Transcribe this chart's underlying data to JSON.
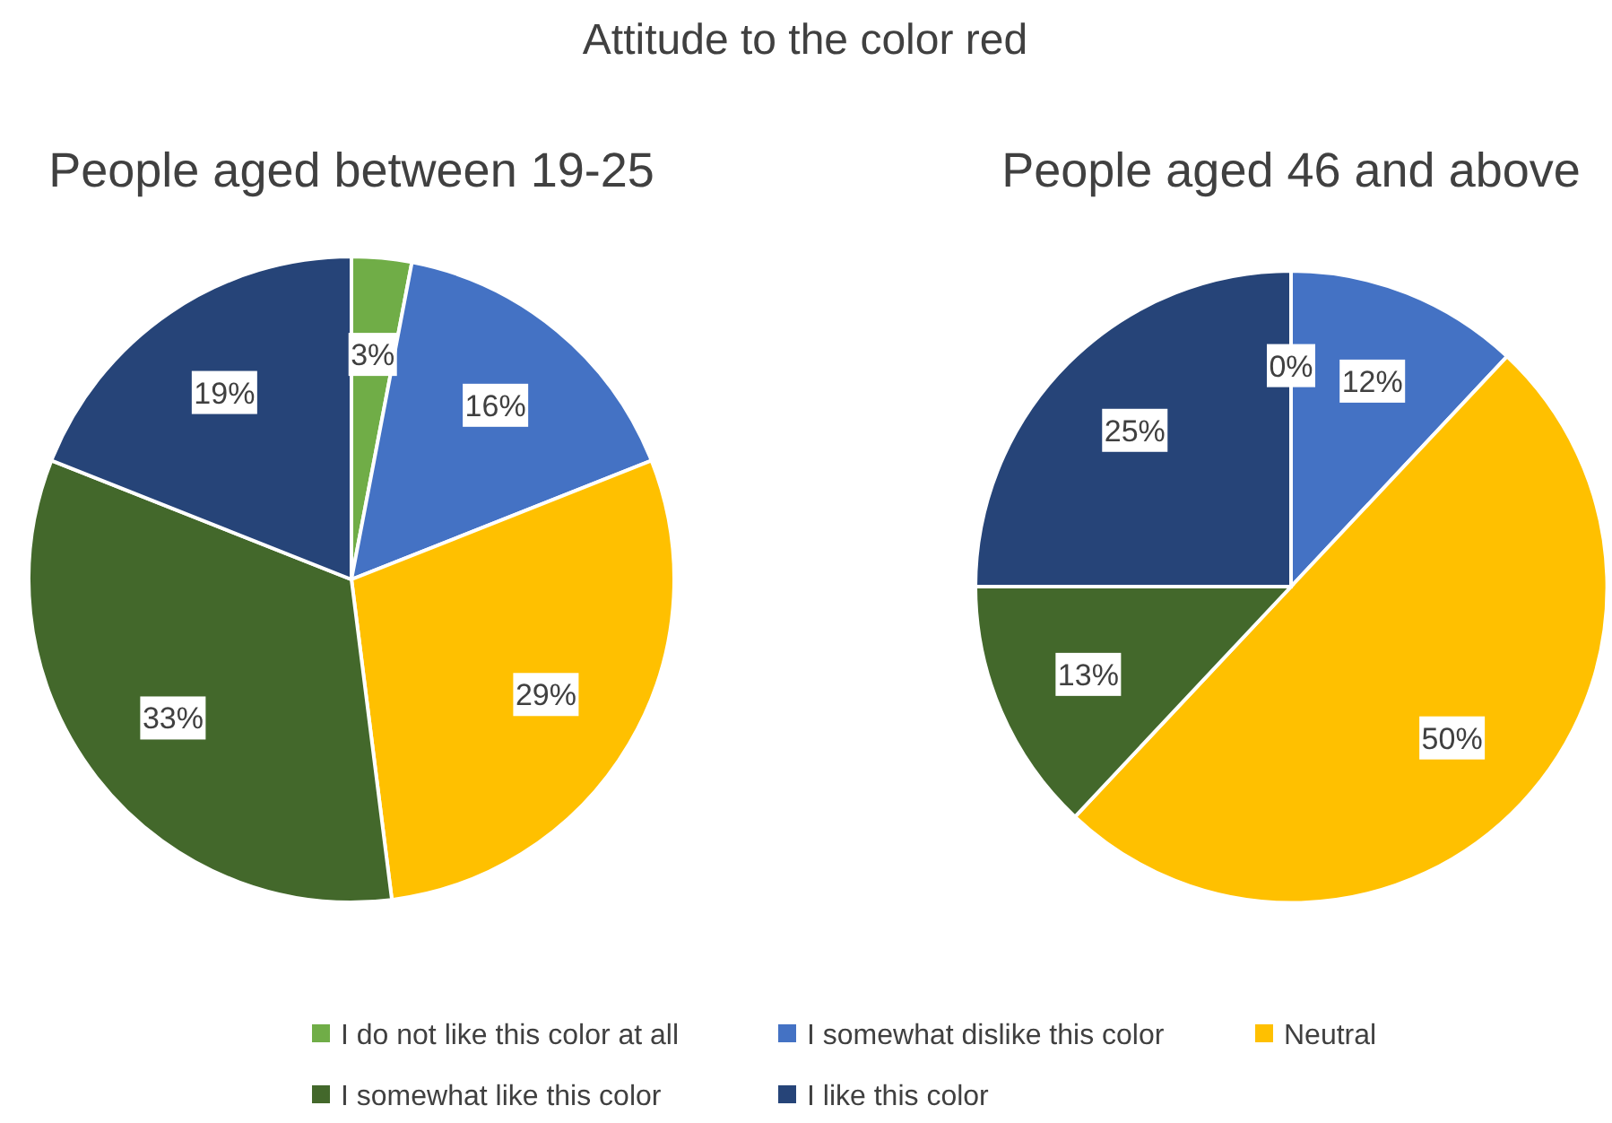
{
  "chart_data": {
    "type": "pie",
    "title": "Attitude to the color red",
    "categories": [
      "I do not like this color at all",
      "I somewhat dislike this color",
      "Neutral",
      "I somewhat like this color",
      "I like this color"
    ],
    "colors": [
      "#70ad47",
      "#4472c4",
      "#ffc000",
      "#43682b",
      "#264478"
    ],
    "legend": "bottom",
    "series": [
      {
        "name": "People aged between 19-25",
        "values": [
          3,
          16,
          29,
          33,
          19
        ],
        "value_labels": [
          "3%",
          "16%",
          "29%",
          "33%",
          "19%"
        ]
      },
      {
        "name": "People aged 46 and above",
        "values": [
          0,
          12,
          50,
          13,
          25
        ],
        "value_labels": [
          "0%",
          "12%",
          "50%",
          "13%",
          "25%"
        ]
      }
    ]
  }
}
